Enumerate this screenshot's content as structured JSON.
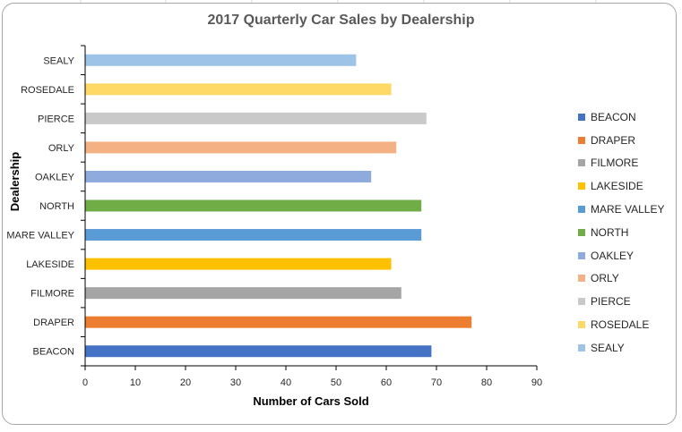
{
  "chart_data": {
    "type": "bar",
    "orientation": "horizontal",
    "title": "2017 Quarterly Car Sales by Dealership",
    "xlabel": "Number of Cars Sold",
    "ylabel": "Dealership",
    "xlim": [
      0,
      90
    ],
    "xticks": [
      "0",
      "10",
      "20",
      "30",
      "40",
      "50",
      "60",
      "70",
      "80",
      "90"
    ],
    "grid": false,
    "legend_position": "right",
    "categories": [
      "BEACON",
      "DRAPER",
      "FILMORE",
      "LAKESIDE",
      "MARE VALLEY",
      "NORTH",
      "OAKLEY",
      "ORLY",
      "PIERCE",
      "ROSEDALE",
      "SEALY"
    ],
    "values": [
      69,
      77,
      63,
      61,
      67,
      67,
      57,
      62,
      68,
      61,
      54
    ],
    "colors": [
      "#4472c4",
      "#ed7d31",
      "#a5a5a5",
      "#ffc000",
      "#5b9bd5",
      "#70ad47",
      "#8faadc",
      "#f4b183",
      "#c9c9c9",
      "#ffd966",
      "#9dc3e6"
    ]
  }
}
